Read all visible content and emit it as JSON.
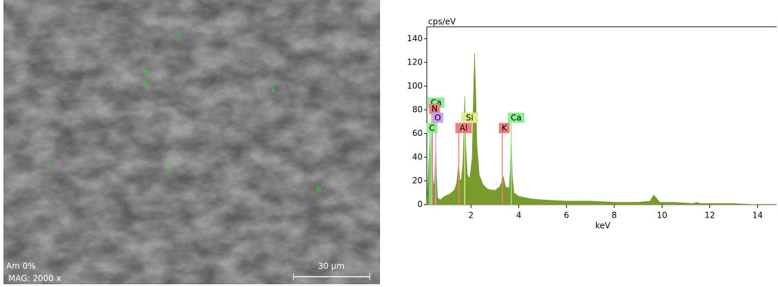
{
  "image": {
    "points": [
      "1",
      "2",
      "3",
      "4",
      "5",
      "6",
      "7"
    ],
    "caption_top": "Am 0%",
    "caption_bottom": "MAG: 2000 x",
    "scale_bar": "30 µm"
  },
  "chart_data": {
    "type": "area",
    "y_label": "cps/eV",
    "x_label": "keV",
    "color": "#7a9a2e",
    "x": [
      0.15,
      0.2,
      0.25,
      0.28,
      0.31,
      0.34,
      0.38,
      0.42,
      0.47,
      0.52,
      0.56,
      0.6,
      0.7,
      0.9,
      1.1,
      1.3,
      1.4,
      1.45,
      1.49,
      1.53,
      1.6,
      1.66,
      1.7,
      1.74,
      1.78,
      1.85,
      1.95,
      2.05,
      2.1,
      2.15,
      2.2,
      2.25,
      2.35,
      2.5,
      2.7,
      3.0,
      3.2,
      3.3,
      3.35,
      3.45,
      3.6,
      3.65,
      3.69,
      3.73,
      3.8,
      4.0,
      4.5,
      5,
      6,
      7,
      8,
      9,
      9.5,
      9.65,
      9.75,
      9.9,
      10.5,
      11.3,
      11.45,
      11.6,
      12,
      13,
      14,
      14.8
    ],
    "values": [
      0,
      20,
      45,
      62,
      30,
      70,
      40,
      20,
      15,
      55,
      25,
      6,
      4,
      7,
      9,
      12,
      18,
      28,
      35,
      20,
      22,
      35,
      60,
      92,
      50,
      25,
      22,
      40,
      90,
      128,
      95,
      50,
      25,
      17,
      13,
      12,
      15,
      20,
      24,
      15,
      14,
      30,
      60,
      25,
      10,
      7,
      5,
      4,
      3,
      3,
      2,
      2,
      3,
      8,
      6,
      2,
      2,
      1,
      2,
      1,
      1,
      1,
      0,
      0
    ],
    "xlim": [
      0.15,
      14.8
    ],
    "ylim": [
      0,
      150
    ],
    "xticks": [
      2,
      4,
      6,
      8,
      10,
      12,
      14
    ],
    "yticks": [
      0,
      20,
      40,
      60,
      80,
      100,
      120,
      140
    ],
    "element_lines": [
      {
        "label": "Ca",
        "energy": 0.34,
        "color": "#90ee90"
      },
      {
        "label": "N",
        "energy": 0.39,
        "color": "#f08080"
      },
      {
        "label": "O",
        "energy": 0.52,
        "color": "#c9a0ff"
      },
      {
        "label": "C",
        "energy": 0.28,
        "color": "#90ee90"
      },
      {
        "label": "Si",
        "energy": 1.74,
        "color": "#ddee88"
      },
      {
        "label": "Al",
        "energy": 1.49,
        "color": "#f08080"
      },
      {
        "label": "Ca",
        "energy": 3.69,
        "color": "#90ee90"
      },
      {
        "label": "K",
        "energy": 3.31,
        "color": "#f08080"
      }
    ]
  }
}
